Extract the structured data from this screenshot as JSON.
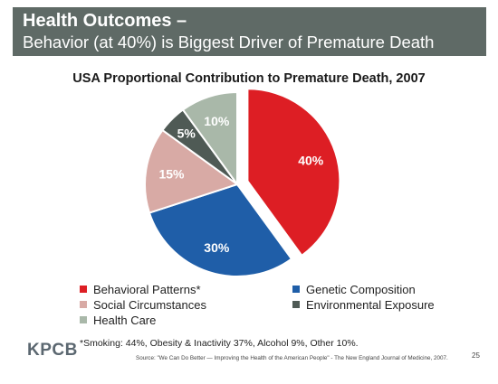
{
  "header": {
    "title": "Health Outcomes –",
    "subtitle": "Behavior (at 40%) is Biggest Driver of Premature Death"
  },
  "chart_data": {
    "type": "pie",
    "title": "USA Proportional Contribution to Premature Death, 2007",
    "categories": [
      "Behavioral Patterns*",
      "Genetic Composition",
      "Social Circumstances",
      "Environmental Exposure",
      "Health Care"
    ],
    "values": [
      40,
      30,
      15,
      5,
      10
    ],
    "value_labels": [
      "40%",
      "30%",
      "15%",
      "5%",
      "10%"
    ],
    "colors": [
      "#dd1e24",
      "#1f5ea8",
      "#d8aaa5",
      "#4f5a55",
      "#a9b8a9"
    ],
    "exploded": [
      true,
      false,
      false,
      false,
      false
    ],
    "legend_placement": "bottom"
  },
  "legend": {
    "items": [
      {
        "label": "Behavioral Patterns*",
        "color": "#dd1e24"
      },
      {
        "label": "Genetic Composition",
        "color": "#1f5ea8"
      },
      {
        "label": "Social Circumstances",
        "color": "#d8aaa5"
      },
      {
        "label": "Environmental Exposure",
        "color": "#4f5a55"
      },
      {
        "label": "Health Care",
        "color": "#a9b8a9"
      }
    ]
  },
  "footnote": "*Smoking: 44%, Obesity & Inactivity 37%, Alcohol 9%, Other 10%.",
  "source": "Source: \"We Can Do Better — Improving the Health of the American People\" - The New England Journal of Medicine, 2007.",
  "page_number": "25",
  "logo": "KPCB"
}
